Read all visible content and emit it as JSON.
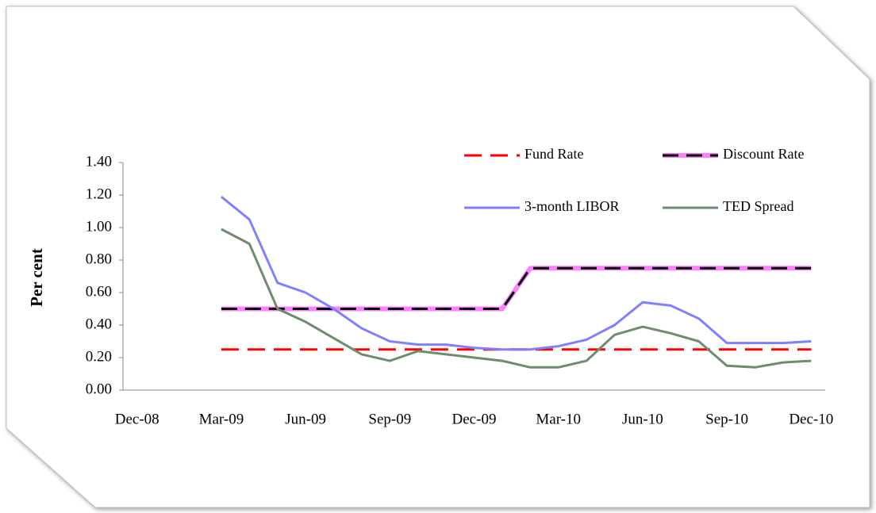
{
  "chart_data": {
    "type": "line",
    "y_label": "Per cent",
    "categories": [
      "Dec-08",
      null,
      null,
      "Mar-09",
      null,
      null,
      "Jun-09",
      null,
      null,
      "Sep-09",
      null,
      null,
      "Dec-09",
      null,
      null,
      "Mar-10",
      null,
      null,
      "Jun-10",
      null,
      null,
      "Sep-10",
      null,
      null,
      "Dec-10"
    ],
    "ylim": [
      0,
      1.4
    ],
    "yticks": [
      {
        "value": 0,
        "label": "0.00"
      },
      {
        "value": 0.2,
        "label": "0.20"
      },
      {
        "value": 0.4,
        "label": "0.40"
      },
      {
        "value": 0.6,
        "label": "0.60"
      },
      {
        "value": 0.8,
        "label": "0.80"
      },
      {
        "value": 1.0,
        "label": "1.00"
      },
      {
        "value": 1.2,
        "label": "1.20"
      },
      {
        "value": 1.4,
        "label": "1.40"
      }
    ],
    "series": [
      {
        "name": "Fund Rate",
        "color": "#ff0000",
        "style": "dashed",
        "values": [
          null,
          null,
          null,
          0.25,
          0.25,
          0.25,
          0.25,
          0.25,
          0.25,
          0.25,
          0.25,
          0.25,
          0.25,
          0.25,
          0.25,
          0.25,
          0.25,
          0.25,
          0.25,
          0.25,
          0.25,
          0.25,
          0.25,
          0.25,
          0.25
        ]
      },
      {
        "name": "Discount Rate",
        "color": "#ff80ff",
        "style": "dashed-over",
        "values": [
          null,
          null,
          null,
          0.5,
          0.5,
          0.5,
          0.5,
          0.5,
          0.5,
          0.5,
          0.5,
          0.5,
          0.5,
          0.5,
          0.75,
          0.75,
          0.75,
          0.75,
          0.75,
          0.75,
          0.75,
          0.75,
          0.75,
          0.75,
          0.75
        ]
      },
      {
        "name": "3-month LIBOR",
        "color": "#8080ff",
        "style": "solid",
        "values": [
          null,
          null,
          null,
          1.19,
          1.05,
          0.66,
          0.6,
          0.5,
          0.38,
          0.3,
          0.28,
          0.28,
          0.26,
          0.25,
          0.25,
          0.27,
          0.31,
          0.4,
          0.54,
          0.52,
          0.44,
          0.29,
          0.29,
          0.29,
          0.3
        ]
      },
      {
        "name": "TED Spread",
        "color": "#6e8c6e",
        "style": "solid",
        "values": [
          null,
          null,
          null,
          0.99,
          0.9,
          0.5,
          0.42,
          0.32,
          0.22,
          0.18,
          0.24,
          0.22,
          0.2,
          0.18,
          0.14,
          0.14,
          0.18,
          0.34,
          0.39,
          0.35,
          0.3,
          0.15,
          0.14,
          0.17,
          0.18
        ]
      }
    ]
  }
}
